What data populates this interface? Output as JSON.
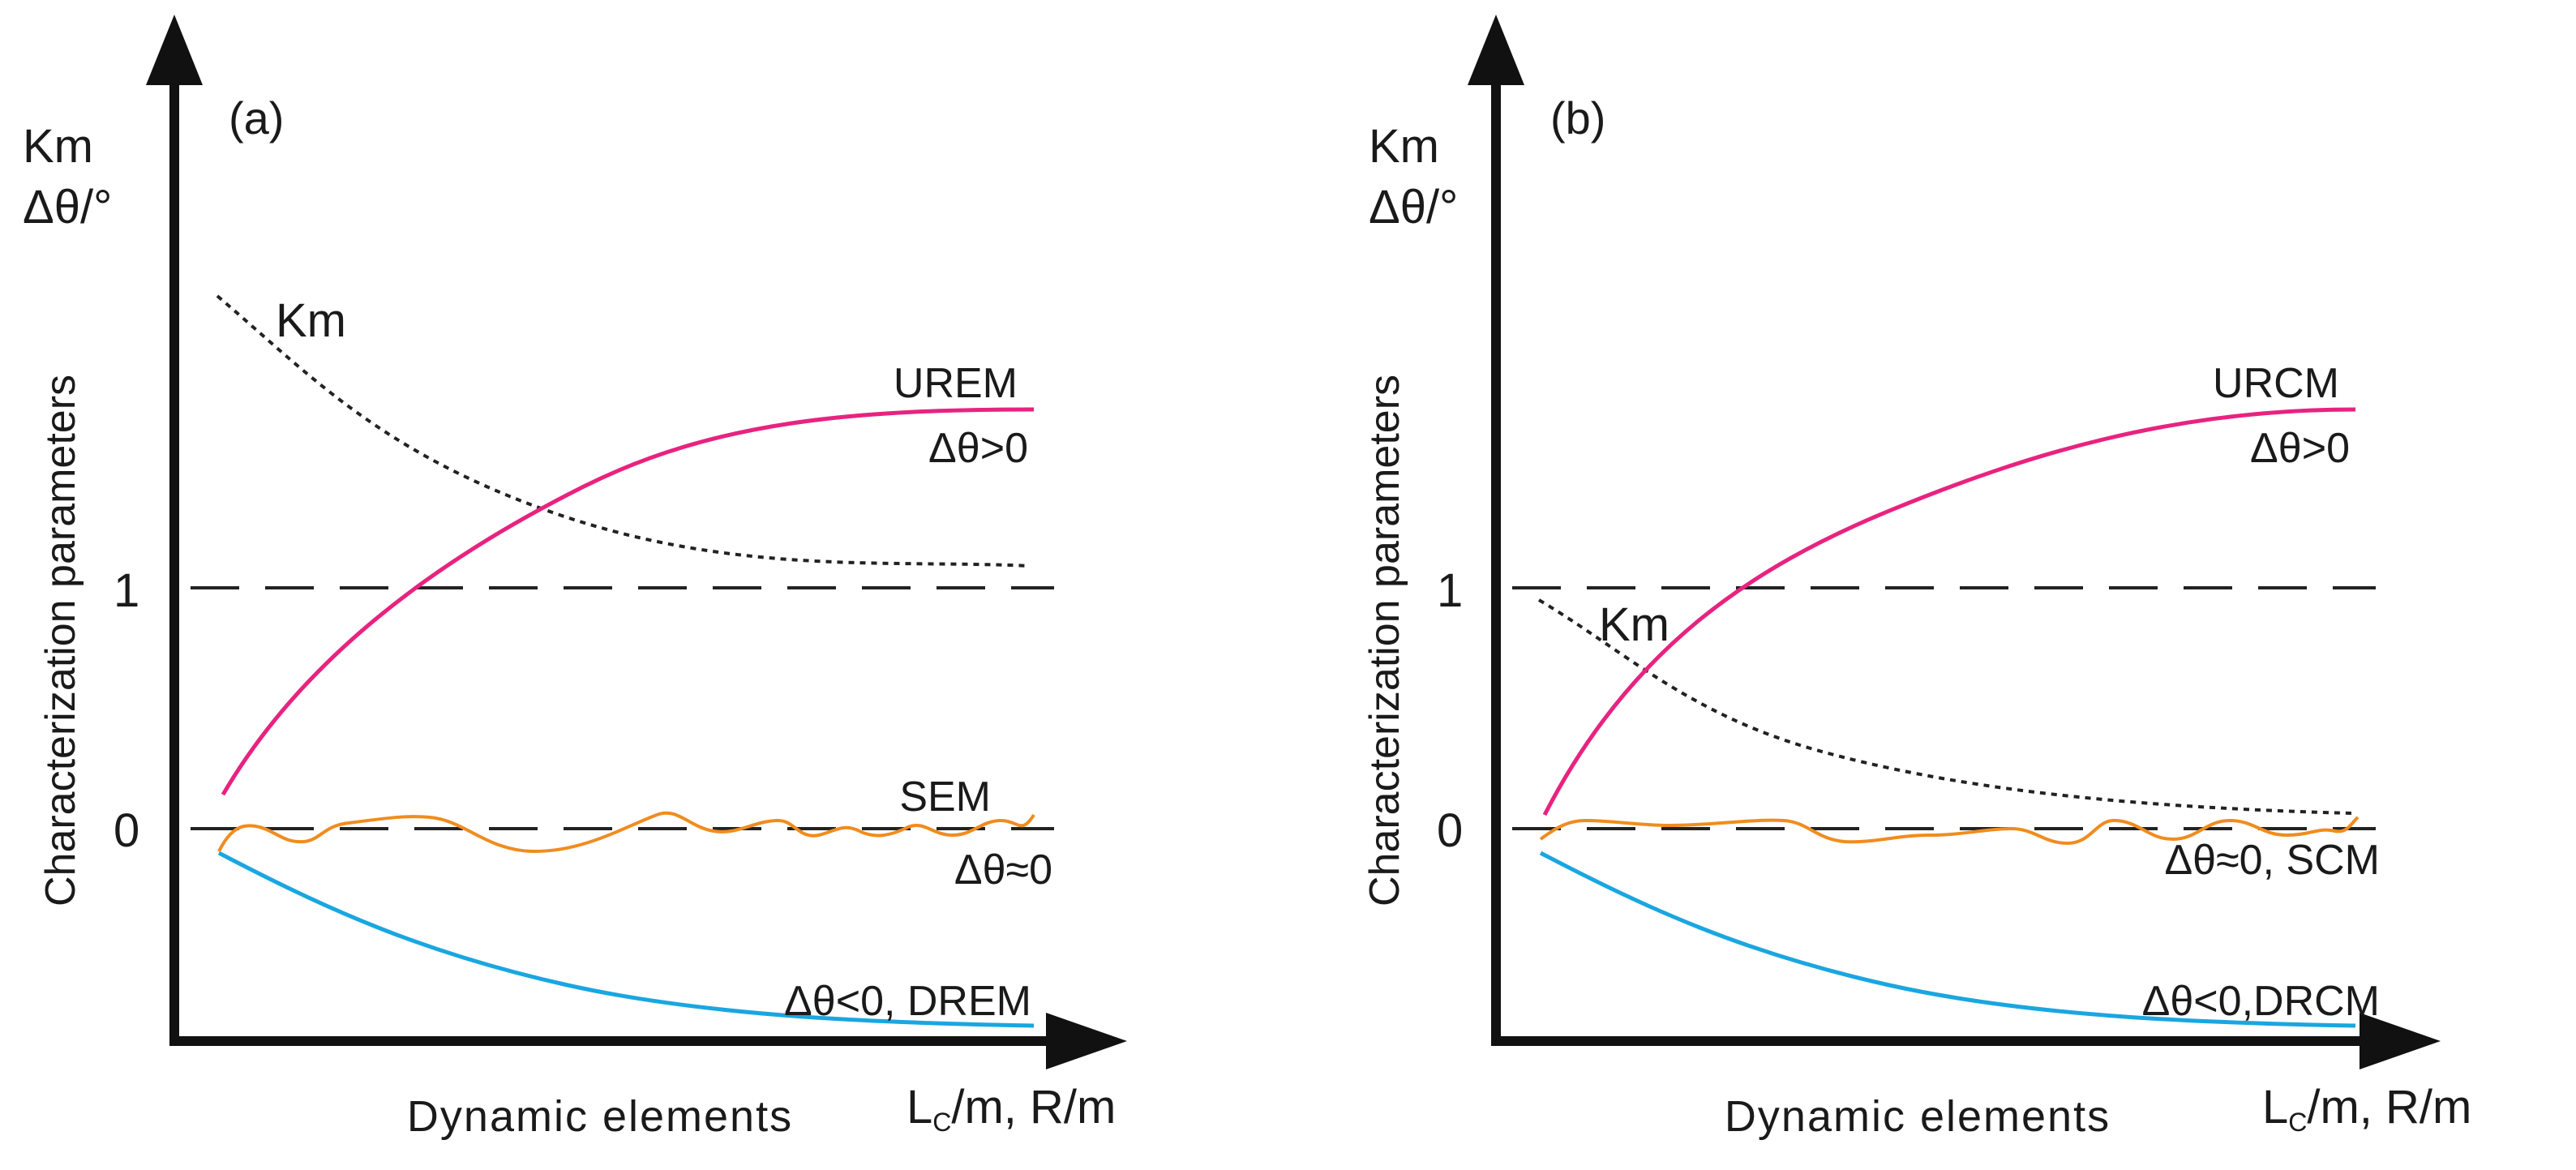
{
  "figure": {
    "panels": [
      {
        "id": "a",
        "panel_label": "(a)",
        "y_axis_label_top": "Km",
        "y_axis_label_unit": "Δθ/°",
        "y_axis_title": "Characterization parameters",
        "tick_one": "1",
        "tick_zero": "0",
        "x_axis_title": "Dynamic elements",
        "x_axis_label_main": "L",
        "x_axis_label_sub": "C",
        "x_axis_label_rest": "/m, R/m",
        "km_label": "Km",
        "upper_curve_name": "UREM",
        "upper_curve_cond": "Δθ>0",
        "middle_curve_name": "SEM",
        "middle_curve_cond": "Δθ≈0",
        "lower_curve_label": "Δθ<0, DREM"
      },
      {
        "id": "b",
        "panel_label": "(b)",
        "y_axis_label_top": "Km",
        "y_axis_label_unit": "Δθ/°",
        "y_axis_title": "Characterization parameters",
        "tick_one": "1",
        "tick_zero": "0",
        "x_axis_title": "Dynamic elements",
        "x_axis_label_main": "L",
        "x_axis_label_sub": "C",
        "x_axis_label_rest": "/m, R/m",
        "km_label": "Km",
        "upper_curve_name": "URCM",
        "upper_curve_cond": "Δθ>0",
        "middle_curve_label": "Δθ≈0, SCM",
        "lower_curve_label": "Δθ<0,DRCM"
      }
    ],
    "colors": {
      "upper_curve": "#e8237f",
      "middle_curve": "#f08c1e",
      "lower_curve": "#1aa6e0",
      "axes": "#111111",
      "dashed": "#222222"
    }
  }
}
